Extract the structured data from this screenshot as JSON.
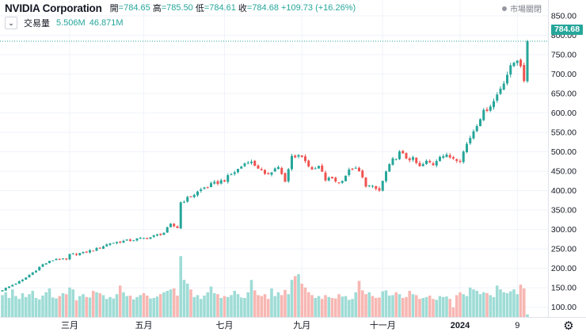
{
  "symbol": {
    "name": "NVIDIA Corporation",
    "open_label": "開",
    "open": "=784.65",
    "high_label": "高",
    "high": "=785.50",
    "low_label": "低",
    "low": "=784.61",
    "close_label": "收",
    "close": "=784.68",
    "change": "+109.73 (+16.26%)"
  },
  "market_status": "市場關閉",
  "volume": {
    "toggle": "⌄",
    "label": "交易量",
    "value": "5.506M",
    "ma": "46.871M"
  },
  "last_price": "784.68",
  "colors": {
    "up": "#26a69a",
    "down": "#ef5350",
    "up_vol": "#9fdcd6",
    "down_vol": "#f7b7b3"
  },
  "chart_data": {
    "type": "candlestick",
    "title": "NVIDIA Corporation",
    "xlabel": "",
    "ylabel": "",
    "ylim": [
      75,
      860
    ],
    "y_ticks": [
      100,
      150,
      200,
      250,
      300,
      350,
      400,
      450,
      500,
      550,
      600,
      650,
      700,
      750,
      800,
      850
    ],
    "y_tick_labels": [
      "100.00",
      "150.00",
      "200.00",
      "250.00",
      "300.00",
      "350.00",
      "400.00",
      "450.00",
      "500.00",
      "550.00",
      "600.00",
      "650.00",
      "700.00",
      "750.00",
      "800.00",
      "850.00"
    ],
    "x_tick_labels": [
      {
        "label": "三月",
        "index": 20
      },
      {
        "label": "五月",
        "index": 42
      },
      {
        "label": "七月",
        "index": 66
      },
      {
        "label": "九月",
        "index": 89
      },
      {
        "label": "十一月",
        "index": 113
      },
      {
        "label": "2024",
        "index": 136
      },
      {
        "label": "9",
        "index": 153
      }
    ],
    "last_close": 784.68,
    "close_path": [
      [
        0,
        145
      ],
      [
        6,
        170
      ],
      [
        12,
        210
      ],
      [
        16,
        225
      ],
      [
        19,
        222
      ],
      [
        20,
        235
      ],
      [
        24,
        240
      ],
      [
        28,
        250
      ],
      [
        32,
        265
      ],
      [
        36,
        270
      ],
      [
        40,
        275
      ],
      [
        44,
        280
      ],
      [
        48,
        292
      ],
      [
        50,
        312
      ],
      [
        52,
        305
      ],
      [
        53,
        370
      ],
      [
        56,
        385
      ],
      [
        60,
        408
      ],
      [
        63,
        418
      ],
      [
        66,
        428
      ],
      [
        70,
        455
      ],
      [
        73,
        478
      ],
      [
        76,
        460
      ],
      [
        78,
        438
      ],
      [
        80,
        452
      ],
      [
        82,
        462
      ],
      [
        84,
        420
      ],
      [
        86,
        488
      ],
      [
        88,
        492
      ],
      [
        90,
        480
      ],
      [
        92,
        450
      ],
      [
        94,
        462
      ],
      [
        96,
        428
      ],
      [
        98,
        432
      ],
      [
        100,
        420
      ],
      [
        102,
        440
      ],
      [
        104,
        460
      ],
      [
        106,
        448
      ],
      [
        108,
        415
      ],
      [
        110,
        408
      ],
      [
        112,
        400
      ],
      [
        114,
        448
      ],
      [
        116,
        478
      ],
      [
        118,
        497
      ],
      [
        120,
        485
      ],
      [
        122,
        480
      ],
      [
        124,
        460
      ],
      [
        126,
        474
      ],
      [
        128,
        468
      ],
      [
        130,
        492
      ],
      [
        132,
        488
      ],
      [
        134,
        485
      ],
      [
        136,
        480
      ],
      [
        138,
        520
      ],
      [
        140,
        555
      ],
      [
        142,
        590
      ],
      [
        144,
        612
      ],
      [
        146,
        630
      ],
      [
        148,
        665
      ],
      [
        150,
        700
      ],
      [
        152,
        730
      ],
      [
        153,
        740
      ],
      [
        154,
        726
      ],
      [
        155,
        674
      ],
      [
        156,
        785
      ]
    ],
    "volume_m": [
      46,
      52,
      40,
      58,
      44,
      38,
      50,
      42,
      48,
      55,
      40,
      37,
      45,
      52,
      60,
      41,
      39,
      44,
      50,
      48,
      62,
      58,
      35,
      44,
      48,
      42,
      41,
      55,
      52,
      50,
      46,
      38,
      42,
      39,
      48,
      66,
      52,
      44,
      45,
      37,
      42,
      46,
      50,
      45,
      39,
      40,
      43,
      48,
      52,
      55,
      58,
      60,
      45,
      128,
      78,
      70,
      58,
      42,
      46,
      38,
      45,
      52,
      64,
      50,
      48,
      40,
      44,
      42,
      46,
      55,
      48,
      41,
      40,
      52,
      78,
      56,
      46,
      44,
      48,
      38,
      60,
      44,
      52,
      46,
      57,
      48,
      78,
      86,
      90,
      70,
      62,
      52,
      46,
      40,
      44,
      38,
      46,
      42,
      40,
      39,
      48,
      43,
      44,
      36,
      38,
      52,
      76,
      56,
      48,
      52,
      44,
      40,
      41,
      54,
      56,
      45,
      46,
      52,
      48,
      40,
      42,
      55,
      48,
      46,
      38,
      40,
      42,
      45,
      38,
      36,
      44,
      42,
      43,
      38,
      20,
      46,
      52,
      48,
      44,
      62,
      58,
      55,
      48,
      52,
      50,
      46,
      42,
      66,
      58,
      52,
      50,
      54,
      58,
      48,
      68,
      60,
      5.5
    ]
  }
}
